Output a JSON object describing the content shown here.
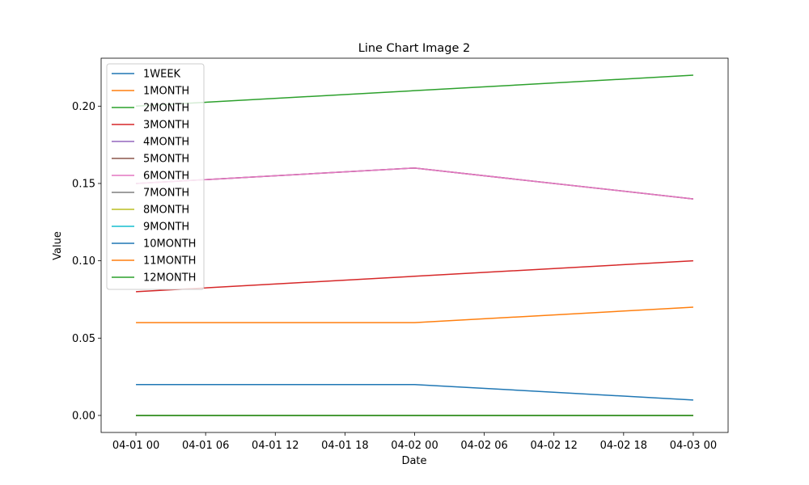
{
  "chart_data": {
    "type": "line",
    "title": "Line Chart Image 2",
    "xlabel": "Date",
    "ylabel": "Value",
    "x": [
      "04-01 00",
      "04-02 00",
      "04-03 00"
    ],
    "x_ticks": [
      "04-01 00",
      "04-01 06",
      "04-01 12",
      "04-01 18",
      "04-02 00",
      "04-02 06",
      "04-02 12",
      "04-02 18",
      "04-03 00"
    ],
    "y_ticks": [
      "0.00",
      "0.05",
      "0.10",
      "0.15",
      "0.20"
    ],
    "xlim": [
      "03-31 21",
      "04-03 03"
    ],
    "ylim": [
      -0.011,
      0.231
    ],
    "grid": false,
    "legend_position": "upper-left",
    "series": [
      {
        "name": "1WEEK",
        "color": "#1f77b4",
        "values": [
          0.02,
          0.02,
          0.01
        ]
      },
      {
        "name": "1MONTH",
        "color": "#ff7f0e",
        "values": [
          0.06,
          0.06,
          0.07
        ]
      },
      {
        "name": "2MONTH",
        "color": "#2ca02c",
        "values": [
          0.2,
          0.21,
          0.22
        ]
      },
      {
        "name": "3MONTH",
        "color": "#d62728",
        "values": [
          0.08,
          0.09,
          0.1
        ]
      },
      {
        "name": "4MONTH",
        "color": "#9467bd",
        "values": [
          0.15,
          0.16,
          0.14
        ]
      },
      {
        "name": "5MONTH",
        "color": "#8c564b",
        "values": [
          0.15,
          0.16,
          0.14
        ]
      },
      {
        "name": "6MONTH",
        "color": "#e377c2",
        "values": [
          0.15,
          0.16,
          0.14
        ]
      },
      {
        "name": "7MONTH",
        "color": "#7f7f7f",
        "values": [
          0.0,
          0.0,
          0.0
        ]
      },
      {
        "name": "8MONTH",
        "color": "#bcbd22",
        "values": [
          0.0,
          0.0,
          0.0
        ]
      },
      {
        "name": "9MONTH",
        "color": "#17becf",
        "values": [
          0.0,
          0.0,
          0.0
        ]
      },
      {
        "name": "10MONTH",
        "color": "#1f77b4",
        "values": [
          0.0,
          0.0,
          0.0
        ]
      },
      {
        "name": "11MONTH",
        "color": "#ff7f0e",
        "values": [
          0.0,
          0.0,
          0.0
        ]
      },
      {
        "name": "12MONTH",
        "color": "#2ca02c",
        "values": [
          0.0,
          0.0,
          0.0
        ]
      }
    ]
  }
}
